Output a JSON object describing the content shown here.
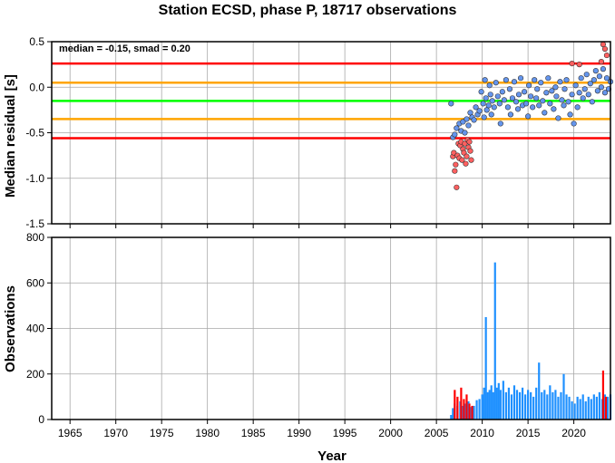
{
  "title": "Station ECSD, phase P, 18717 observations",
  "chart_data": [
    {
      "type": "scatter",
      "ylabel": "Median residual [s]",
      "xlim": [
        1963,
        2024
      ],
      "ylim": [
        -1.5,
        0.5
      ],
      "yticks": [
        0.5,
        0.0,
        -0.5,
        -1.0,
        -1.5
      ],
      "ytick_labels": [
        "0.5",
        "0.0",
        "-0.5",
        "-1.0",
        "-1.5"
      ],
      "grid": true,
      "annotation": "median = -0.15, smad = 0.20",
      "reference_lines": [
        {
          "y": 0.26,
          "color": "#ff0000"
        },
        {
          "y": 0.05,
          "color": "#ffa500"
        },
        {
          "y": -0.15,
          "color": "#00ff00"
        },
        {
          "y": -0.35,
          "color": "#ffa500"
        },
        {
          "y": -0.56,
          "color": "#ff0000"
        }
      ],
      "series": [
        {
          "color": "#ff6060",
          "points": [
            [
              2006.8,
              -0.76
            ],
            [
              2006.9,
              -0.72
            ],
            [
              2007.0,
              -0.92
            ],
            [
              2007.1,
              -0.85
            ],
            [
              2007.2,
              -1.1
            ],
            [
              2007.3,
              -0.75
            ],
            [
              2007.4,
              -0.62
            ],
            [
              2007.5,
              -0.78
            ],
            [
              2007.6,
              -0.64
            ],
            [
              2007.7,
              -0.6
            ],
            [
              2007.8,
              -0.8
            ],
            [
              2007.9,
              -0.68
            ],
            [
              2008.0,
              -0.72
            ],
            [
              2008.1,
              -0.62
            ],
            [
              2008.2,
              -0.84
            ],
            [
              2008.3,
              -0.76
            ],
            [
              2008.4,
              -0.58
            ],
            [
              2008.5,
              -0.66
            ],
            [
              2008.6,
              -0.6
            ],
            [
              2008.7,
              -0.7
            ],
            [
              2008.8,
              -0.8
            ],
            [
              2019.8,
              0.26
            ],
            [
              2020.6,
              0.25
            ],
            [
              2023.0,
              0.28
            ],
            [
              2023.2,
              0.47
            ],
            [
              2023.4,
              0.42
            ],
            [
              2023.6,
              0.35
            ]
          ]
        },
        {
          "color": "#6495ed",
          "points": [
            [
              2006.6,
              -0.18
            ],
            [
              2006.8,
              -0.55
            ],
            [
              2007.0,
              -0.52
            ],
            [
              2007.2,
              -0.45
            ],
            [
              2007.5,
              -0.4
            ],
            [
              2007.7,
              -0.48
            ],
            [
              2007.9,
              -0.38
            ],
            [
              2008.1,
              -0.5
            ],
            [
              2008.3,
              -0.35
            ],
            [
              2008.5,
              -0.42
            ],
            [
              2008.7,
              -0.28
            ],
            [
              2008.9,
              -0.33
            ],
            [
              2009.1,
              -0.36
            ],
            [
              2009.3,
              -0.22
            ],
            [
              2009.5,
              -0.3
            ],
            [
              2009.7,
              -0.26
            ],
            [
              2009.9,
              -0.05
            ],
            [
              2010.1,
              -0.18
            ],
            [
              2010.2,
              -0.33
            ],
            [
              2010.3,
              0.08
            ],
            [
              2010.4,
              -0.12
            ],
            [
              2010.5,
              -0.25
            ],
            [
              2010.7,
              -0.2
            ],
            [
              2010.8,
              0.02
            ],
            [
              2010.9,
              -0.08
            ],
            [
              2011.0,
              -0.3
            ],
            [
              2011.1,
              -0.15
            ],
            [
              2011.3,
              -0.22
            ],
            [
              2011.5,
              0.05
            ],
            [
              2011.7,
              -0.1
            ],
            [
              2011.9,
              -0.18
            ],
            [
              2012.0,
              -0.4
            ],
            [
              2012.2,
              -0.05
            ],
            [
              2012.4,
              -0.14
            ],
            [
              2012.6,
              0.08
            ],
            [
              2012.8,
              -0.22
            ],
            [
              2013.0,
              -0.02
            ],
            [
              2013.1,
              -0.3
            ],
            [
              2013.3,
              -0.12
            ],
            [
              2013.5,
              0.06
            ],
            [
              2013.7,
              -0.16
            ],
            [
              2013.9,
              -0.24
            ],
            [
              2014.0,
              -0.08
            ],
            [
              2014.2,
              0.1
            ],
            [
              2014.4,
              -0.2
            ],
            [
              2014.6,
              -0.05
            ],
            [
              2014.8,
              -0.18
            ],
            [
              2015.0,
              -0.32
            ],
            [
              2015.1,
              0.02
            ],
            [
              2015.3,
              -0.1
            ],
            [
              2015.5,
              -0.22
            ],
            [
              2015.7,
              0.08
            ],
            [
              2015.9,
              -0.12
            ],
            [
              2016.0,
              -0.02
            ],
            [
              2016.2,
              -0.2
            ],
            [
              2016.4,
              0.05
            ],
            [
              2016.6,
              -0.15
            ],
            [
              2016.8,
              -0.28
            ],
            [
              2017.0,
              -0.06
            ],
            [
              2017.2,
              0.1
            ],
            [
              2017.4,
              -0.18
            ],
            [
              2017.6,
              -0.04
            ],
            [
              2017.8,
              -0.24
            ],
            [
              2018.0,
              0.0
            ],
            [
              2018.1,
              -0.1
            ],
            [
              2018.3,
              -0.34
            ],
            [
              2018.5,
              0.06
            ],
            [
              2018.7,
              -0.14
            ],
            [
              2018.9,
              -0.2
            ],
            [
              2019.0,
              -0.02
            ],
            [
              2019.2,
              0.08
            ],
            [
              2019.4,
              -0.16
            ],
            [
              2019.6,
              -0.3
            ],
            [
              2019.8,
              -0.08
            ],
            [
              2020.0,
              -0.4
            ],
            [
              2020.2,
              0.02
            ],
            [
              2020.4,
              -0.22
            ],
            [
              2020.6,
              -0.06
            ],
            [
              2020.8,
              0.1
            ],
            [
              2021.0,
              -0.12
            ],
            [
              2021.2,
              -0.02
            ],
            [
              2021.4,
              0.14
            ],
            [
              2021.6,
              -0.08
            ],
            [
              2021.8,
              0.04
            ],
            [
              2022.0,
              -0.16
            ],
            [
              2022.2,
              0.08
            ],
            [
              2022.4,
              0.18
            ],
            [
              2022.6,
              -0.04
            ],
            [
              2022.8,
              0.12
            ],
            [
              2023.0,
              0.0
            ],
            [
              2023.2,
              0.2
            ],
            [
              2023.4,
              -0.06
            ],
            [
              2023.6,
              0.1
            ],
            [
              2023.8,
              -0.02
            ],
            [
              2024.0,
              0.06
            ]
          ]
        }
      ]
    },
    {
      "type": "bar",
      "xlabel": "Year",
      "ylabel": "Observations",
      "xlim": [
        1963,
        2024
      ],
      "ylim": [
        0,
        800
      ],
      "yticks": [
        0,
        200,
        400,
        600,
        800
      ],
      "ytick_labels": [
        "0",
        "200",
        "400",
        "600",
        "800"
      ],
      "xticks": [
        1965,
        1970,
        1975,
        1980,
        1985,
        1990,
        1995,
        2000,
        2005,
        2010,
        2015,
        2020
      ],
      "xtick_labels": [
        "1965",
        "1970",
        "1975",
        "1980",
        "1985",
        "1990",
        "1995",
        "2000",
        "2005",
        "2010",
        "2015",
        "2020"
      ],
      "grid": true,
      "series": [
        {
          "color": "#1e90ff",
          "points": [
            [
              2006.6,
              20
            ],
            [
              2006.8,
              50
            ],
            [
              2007.0,
              70
            ],
            [
              2007.3,
              60
            ],
            [
              2007.6,
              80
            ],
            [
              2007.9,
              60
            ],
            [
              2008.2,
              70
            ],
            [
              2008.5,
              80
            ],
            [
              2008.8,
              55
            ],
            [
              2009.1,
              60
            ],
            [
              2009.4,
              85
            ],
            [
              2009.7,
              90
            ],
            [
              2010.0,
              110
            ],
            [
              2010.2,
              140
            ],
            [
              2010.4,
              450
            ],
            [
              2010.6,
              120
            ],
            [
              2010.8,
              130
            ],
            [
              2011.0,
              150
            ],
            [
              2011.2,
              120
            ],
            [
              2011.4,
              690
            ],
            [
              2011.6,
              140
            ],
            [
              2011.8,
              160
            ],
            [
              2012.0,
              130
            ],
            [
              2012.3,
              170
            ],
            [
              2012.6,
              120
            ],
            [
              2012.9,
              140
            ],
            [
              2013.2,
              110
            ],
            [
              2013.5,
              150
            ],
            [
              2013.8,
              130
            ],
            [
              2014.1,
              120
            ],
            [
              2014.4,
              140
            ],
            [
              2014.7,
              110
            ],
            [
              2015.0,
              130
            ],
            [
              2015.3,
              120
            ],
            [
              2015.6,
              100
            ],
            [
              2015.9,
              140
            ],
            [
              2016.2,
              250
            ],
            [
              2016.5,
              120
            ],
            [
              2016.8,
              130
            ],
            [
              2017.1,
              110
            ],
            [
              2017.4,
              150
            ],
            [
              2017.7,
              120
            ],
            [
              2018.0,
              130
            ],
            [
              2018.3,
              100
            ],
            [
              2018.6,
              120
            ],
            [
              2018.9,
              200
            ],
            [
              2019.2,
              110
            ],
            [
              2019.5,
              100
            ],
            [
              2019.8,
              80
            ],
            [
              2020.1,
              70
            ],
            [
              2020.4,
              100
            ],
            [
              2020.7,
              90
            ],
            [
              2021.0,
              110
            ],
            [
              2021.3,
              80
            ],
            [
              2021.6,
              100
            ],
            [
              2021.9,
              90
            ],
            [
              2022.2,
              110
            ],
            [
              2022.5,
              100
            ],
            [
              2022.8,
              120
            ],
            [
              2023.1,
              90
            ],
            [
              2023.4,
              110
            ],
            [
              2023.7,
              100
            ],
            [
              2024.0,
              110
            ]
          ]
        },
        {
          "color": "#ff0000",
          "points": [
            [
              2007.0,
              130
            ],
            [
              2007.3,
              100
            ],
            [
              2007.7,
              140
            ],
            [
              2008.0,
              90
            ],
            [
              2008.3,
              110
            ],
            [
              2008.6,
              70
            ],
            [
              2008.9,
              60
            ],
            [
              2023.2,
              215
            ],
            [
              2023.5,
              100
            ]
          ]
        }
      ]
    }
  ]
}
